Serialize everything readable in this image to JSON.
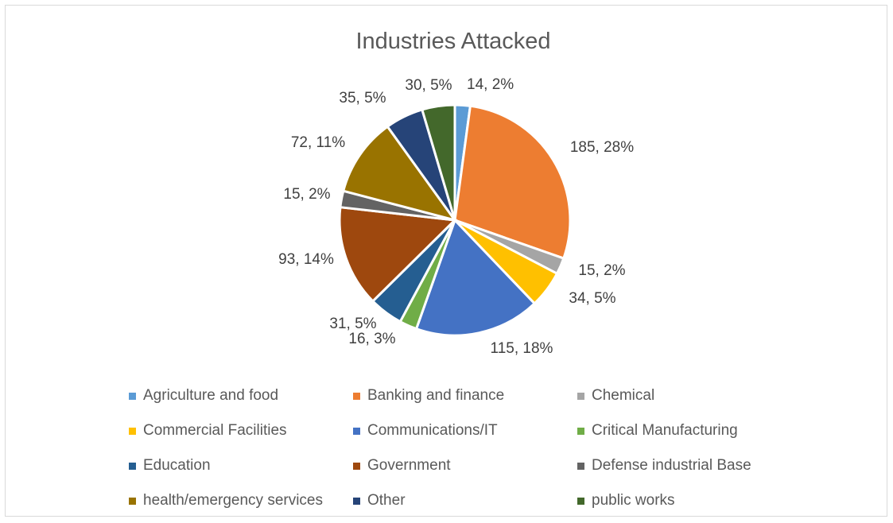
{
  "chart_data": {
    "type": "pie",
    "title": "Industries Attacked",
    "slices": [
      {
        "name": "Agriculture and food",
        "value": 14,
        "percent": "2%",
        "label": "14, 2%",
        "color": "#5b9bd5"
      },
      {
        "name": "Banking and finance",
        "value": 185,
        "percent": "28%",
        "label": "185, 28%",
        "color": "#ed7d31"
      },
      {
        "name": "Chemical",
        "value": 15,
        "percent": "2%",
        "label": "15, 2%",
        "color": "#a5a5a5"
      },
      {
        "name": "Commercial Facilities",
        "value": 34,
        "percent": "5%",
        "label": "34, 5%",
        "color": "#ffc000"
      },
      {
        "name": "Communications/IT",
        "value": 115,
        "percent": "18%",
        "label": "115, 18%",
        "color": "#4472c4"
      },
      {
        "name": "Critical Manufacturing",
        "value": 16,
        "percent": "3%",
        "label": "16, 3%",
        "color": "#70ad47"
      },
      {
        "name": "Education",
        "value": 31,
        "percent": "5%",
        "label": "31, 5%",
        "color": "#255e91"
      },
      {
        "name": "Government",
        "value": 93,
        "percent": "14%",
        "label": "93, 14%",
        "color": "#9e480e"
      },
      {
        "name": "Defense industrial Base",
        "value": 15,
        "percent": "2%",
        "label": "15, 2%",
        "color": "#636363"
      },
      {
        "name": "health/emergency services",
        "value": 72,
        "percent": "11%",
        "label": "72, 11%",
        "color": "#997300"
      },
      {
        "name": "Other",
        "value": 35,
        "percent": "5%",
        "label": "35, 5%",
        "color": "#264478"
      },
      {
        "name": "public works",
        "value": 30,
        "percent": "5%",
        "label": "30, 5%",
        "color": "#43682b"
      }
    ],
    "legend_position": "bottom"
  }
}
